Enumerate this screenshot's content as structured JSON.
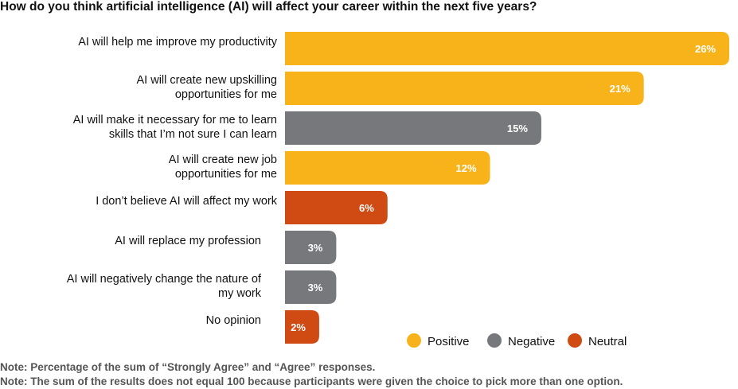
{
  "chart_data": {
    "type": "bar",
    "orientation": "horizontal",
    "title": "How do you think artificial intelligence (AI) will affect your career within the next five years?",
    "categories": [
      [
        "AI will help me improve my productivity"
      ],
      [
        "AI will create new upskilling",
        "opportunities for me"
      ],
      [
        "AI will make it necessary for me to learn",
        "skills that I’m not sure I can learn"
      ],
      [
        "AI will create new job",
        "opportunities for me"
      ],
      [
        "I don’t believe AI will affect my work"
      ],
      [
        "AI will replace my profession"
      ],
      [
        "AI will negatively change the nature of",
        "my work"
      ],
      [
        "No opinion"
      ]
    ],
    "values": [
      26,
      21,
      15,
      12,
      6,
      3,
      3,
      2
    ],
    "value_labels": [
      "26%",
      "21%",
      "15%",
      "12%",
      "6%",
      "3%",
      "3%",
      "2%"
    ],
    "groups": [
      "Positive",
      "Positive",
      "Negative",
      "Positive",
      "Neutral",
      "Negative",
      "Negative",
      "Neutral"
    ],
    "legend": [
      {
        "name": "Positive",
        "color": "#F9B31A"
      },
      {
        "name": "Negative",
        "color": "#76787B"
      },
      {
        "name": "Neutral",
        "color": "#D04A14"
      }
    ],
    "legend_position": "bottom-right",
    "xlim": [
      0,
      26
    ],
    "grid": false
  },
  "notes": [
    "Note: Percentage of the sum of “Strongly Agree” and “Agree” responses.",
    "Note: The sum of the results does not equal 100 because participants were given the choice to pick more than one option."
  ]
}
